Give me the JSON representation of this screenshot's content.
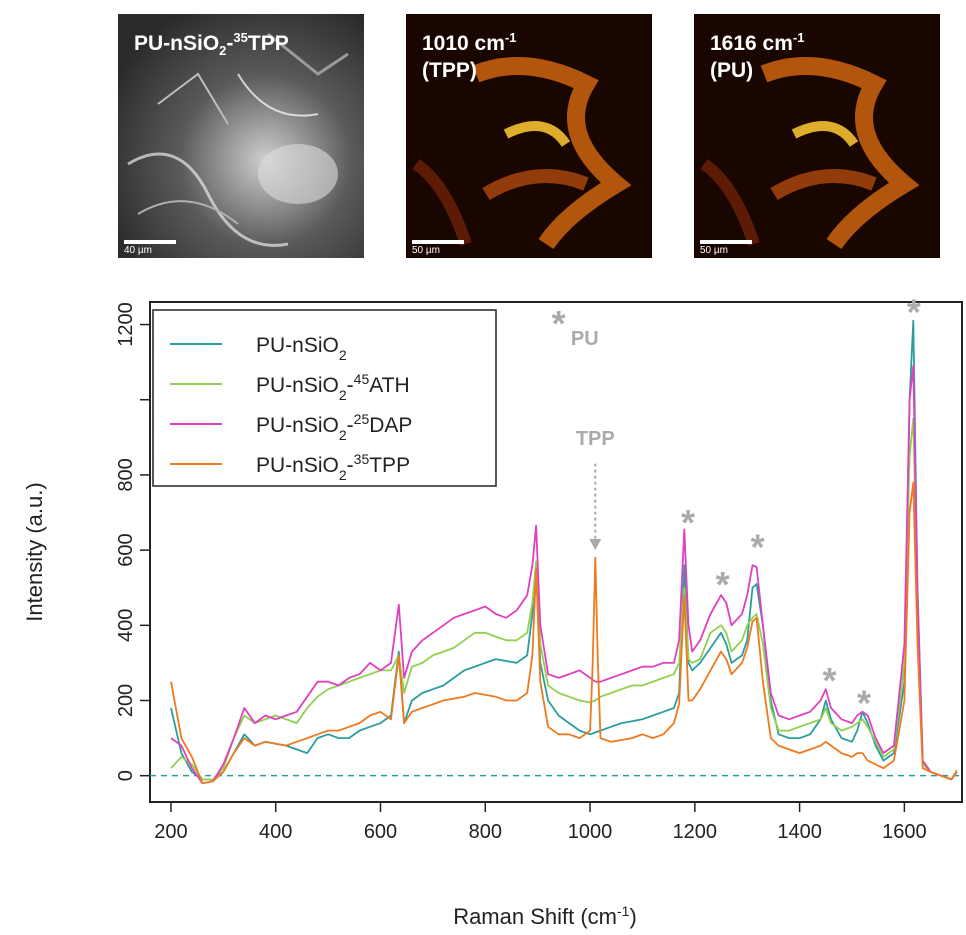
{
  "panels": [
    {
      "label_main": "PU-nSiO",
      "label_sub": "2",
      "label_dash": "-",
      "label_sup": "35",
      "label_end": "TPP",
      "scale": "40 µm"
    },
    {
      "line1_main": "1010 cm",
      "line1_sup": "-1",
      "line2": "(TPP)",
      "scale": "50 µm"
    },
    {
      "line1_main": "1616 cm",
      "line1_sup": "-1",
      "line2": "(PU)",
      "scale": "50 µm"
    }
  ],
  "annotations": {
    "pu_star": "*",
    "pu_text": "PU",
    "tpp_text": "TPP",
    "star": "*"
  },
  "colors": {
    "PU-nSiO2": "#2a9d9f",
    "PU-nSiO2-45ATH": "#8fd14f",
    "PU-nSiO2-25DAP": "#e040c0",
    "PU-nSiO2-35TPP": "#ee7a1f",
    "annotation": "#aaaaaa",
    "baseline": "#2a9d9f"
  },
  "chart_data": {
    "type": "line",
    "xlabel": "Raman Shift  (cm",
    "xlabel_sup": "-1",
    "xlabel_end": ")",
    "ylabel": "Intensity (a.u.)",
    "xlim": [
      160,
      1710
    ],
    "ylim": [
      -70,
      1260
    ],
    "xticks": [
      200,
      400,
      600,
      800,
      1000,
      1200,
      1400,
      1600
    ],
    "xtick_labels": [
      "200",
      "400",
      "600",
      "800",
      "1000",
      "1200",
      "1400",
      "1600"
    ],
    "yticks": [
      0,
      200,
      400,
      600,
      800,
      1000,
      1200
    ],
    "ytick_labels": [
      "0",
      "200",
      "400",
      "600",
      "800",
      "",
      "1200"
    ],
    "legend_position": "top-left",
    "grid": false,
    "series": [
      {
        "name": "PU-nSiO2",
        "legend_main": "PU-nSiO",
        "legend_sub": "2",
        "legend_sup": "",
        "legend_end": "",
        "x": [
          200,
          220,
          240,
          260,
          280,
          300,
          320,
          340,
          360,
          380,
          400,
          420,
          440,
          460,
          480,
          500,
          520,
          540,
          560,
          580,
          600,
          620,
          635,
          645,
          660,
          680,
          700,
          720,
          740,
          760,
          780,
          800,
          820,
          840,
          860,
          880,
          890,
          897,
          905,
          920,
          940,
          960,
          980,
          1000,
          1010,
          1020,
          1040,
          1060,
          1080,
          1100,
          1120,
          1140,
          1160,
          1170,
          1180,
          1188,
          1195,
          1210,
          1230,
          1250,
          1260,
          1270,
          1290,
          1300,
          1310,
          1318,
          1330,
          1345,
          1360,
          1380,
          1400,
          1420,
          1440,
          1450,
          1460,
          1480,
          1500,
          1510,
          1520,
          1530,
          1545,
          1560,
          1580,
          1600,
          1610,
          1617,
          1625,
          1635,
          1650,
          1670,
          1690,
          1700
        ],
        "y": [
          180,
          60,
          10,
          -10,
          -10,
          10,
          60,
          110,
          80,
          90,
          85,
          80,
          70,
          60,
          100,
          110,
          100,
          100,
          120,
          130,
          140,
          160,
          330,
          140,
          200,
          220,
          230,
          240,
          260,
          280,
          290,
          300,
          310,
          305,
          300,
          320,
          430,
          545,
          300,
          200,
          160,
          140,
          120,
          110,
          115,
          120,
          130,
          140,
          145,
          150,
          160,
          170,
          180,
          220,
          560,
          300,
          280,
          300,
          340,
          380,
          350,
          300,
          320,
          360,
          500,
          510,
          400,
          200,
          110,
          100,
          100,
          110,
          150,
          200,
          150,
          100,
          90,
          120,
          170,
          140,
          80,
          40,
          60,
          250,
          1000,
          1210,
          500,
          40,
          10,
          0,
          -10,
          10
        ]
      },
      {
        "name": "PU-nSiO2-45ATH",
        "legend_main": "PU-nSiO",
        "legend_sub": "2",
        "legend_sup": "45",
        "legend_end": "ATH",
        "x": [
          200,
          220,
          240,
          260,
          280,
          300,
          320,
          340,
          360,
          380,
          400,
          420,
          440,
          460,
          480,
          500,
          520,
          540,
          560,
          580,
          600,
          620,
          635,
          645,
          660,
          680,
          700,
          720,
          740,
          760,
          780,
          800,
          820,
          840,
          860,
          880,
          890,
          897,
          905,
          920,
          940,
          960,
          980,
          1000,
          1010,
          1020,
          1040,
          1060,
          1080,
          1100,
          1120,
          1140,
          1160,
          1170,
          1180,
          1188,
          1195,
          1210,
          1230,
          1250,
          1260,
          1270,
          1290,
          1300,
          1310,
          1318,
          1330,
          1345,
          1360,
          1380,
          1400,
          1420,
          1440,
          1450,
          1460,
          1480,
          1500,
          1510,
          1520,
          1530,
          1545,
          1560,
          1580,
          1600,
          1610,
          1617,
          1625,
          1635,
          1650,
          1670,
          1690,
          1700
        ],
        "y": [
          20,
          50,
          30,
          -10,
          -10,
          20,
          100,
          160,
          140,
          150,
          160,
          150,
          140,
          180,
          210,
          230,
          240,
          250,
          260,
          270,
          280,
          280,
          320,
          220,
          290,
          300,
          320,
          330,
          340,
          360,
          380,
          380,
          370,
          360,
          360,
          380,
          460,
          570,
          350,
          240,
          220,
          210,
          200,
          195,
          200,
          210,
          220,
          230,
          240,
          240,
          250,
          260,
          270,
          300,
          500,
          310,
          300,
          310,
          380,
          400,
          380,
          330,
          360,
          400,
          420,
          430,
          350,
          180,
          120,
          120,
          130,
          140,
          150,
          180,
          140,
          120,
          130,
          140,
          150,
          130,
          90,
          50,
          70,
          300,
          850,
          950,
          450,
          30,
          10,
          0,
          -10,
          15
        ]
      },
      {
        "name": "PU-nSiO2-25DAP",
        "legend_main": "PU-nSiO",
        "legend_sub": "2",
        "legend_sup": "25",
        "legend_end": "DAP",
        "x": [
          200,
          220,
          240,
          260,
          280,
          300,
          320,
          340,
          360,
          380,
          400,
          420,
          440,
          460,
          480,
          500,
          520,
          540,
          560,
          580,
          600,
          620,
          635,
          645,
          660,
          680,
          700,
          720,
          740,
          760,
          780,
          800,
          820,
          840,
          860,
          880,
          890,
          897,
          905,
          920,
          940,
          960,
          980,
          1000,
          1010,
          1020,
          1040,
          1060,
          1080,
          1100,
          1120,
          1140,
          1160,
          1170,
          1180,
          1188,
          1195,
          1210,
          1230,
          1250,
          1260,
          1270,
          1290,
          1300,
          1310,
          1318,
          1330,
          1345,
          1360,
          1380,
          1400,
          1420,
          1440,
          1450,
          1460,
          1480,
          1500,
          1510,
          1520,
          1530,
          1545,
          1560,
          1580,
          1600,
          1610,
          1617,
          1625,
          1635,
          1650,
          1670,
          1690,
          1700
        ],
        "y": [
          100,
          80,
          20,
          -20,
          -15,
          30,
          100,
          180,
          140,
          160,
          150,
          160,
          170,
          210,
          250,
          250,
          240,
          260,
          270,
          300,
          280,
          300,
          455,
          260,
          330,
          360,
          380,
          400,
          420,
          430,
          440,
          450,
          430,
          420,
          440,
          480,
          560,
          665,
          400,
          270,
          260,
          270,
          280,
          260,
          250,
          250,
          260,
          270,
          280,
          290,
          290,
          300,
          300,
          360,
          655,
          400,
          330,
          360,
          430,
          480,
          460,
          400,
          430,
          480,
          560,
          555,
          400,
          220,
          160,
          150,
          160,
          170,
          200,
          230,
          180,
          150,
          140,
          160,
          170,
          160,
          100,
          60,
          80,
          350,
          1000,
          1090,
          480,
          40,
          10,
          0,
          -10,
          10
        ]
      },
      {
        "name": "PU-nSiO2-35TPP",
        "legend_main": "PU-nSiO",
        "legend_sub": "2",
        "legend_sup": "35",
        "legend_end": "TPP",
        "x": [
          200,
          220,
          240,
          260,
          280,
          300,
          320,
          340,
          360,
          380,
          400,
          420,
          440,
          460,
          480,
          500,
          520,
          540,
          560,
          580,
          600,
          620,
          635,
          645,
          660,
          680,
          700,
          720,
          740,
          760,
          780,
          800,
          820,
          840,
          860,
          880,
          890,
          897,
          905,
          920,
          940,
          960,
          980,
          1000,
          1005,
          1010,
          1015,
          1020,
          1040,
          1060,
          1080,
          1100,
          1120,
          1140,
          1160,
          1170,
          1180,
          1188,
          1195,
          1210,
          1230,
          1250,
          1260,
          1270,
          1290,
          1300,
          1310,
          1318,
          1330,
          1345,
          1360,
          1380,
          1400,
          1420,
          1440,
          1450,
          1460,
          1480,
          1500,
          1510,
          1520,
          1530,
          1545,
          1560,
          1580,
          1600,
          1610,
          1617,
          1625,
          1635,
          1650,
          1670,
          1690,
          1700
        ],
        "y": [
          250,
          100,
          50,
          -20,
          -15,
          10,
          60,
          100,
          80,
          90,
          85,
          80,
          90,
          100,
          110,
          120,
          120,
          130,
          140,
          160,
          170,
          150,
          320,
          140,
          170,
          180,
          190,
          200,
          205,
          210,
          220,
          215,
          210,
          200,
          200,
          220,
          320,
          550,
          250,
          130,
          110,
          110,
          100,
          120,
          300,
          580,
          300,
          100,
          90,
          95,
          100,
          110,
          100,
          110,
          140,
          190,
          480,
          200,
          200,
          230,
          280,
          330,
          310,
          270,
          300,
          340,
          410,
          420,
          250,
          100,
          80,
          70,
          60,
          70,
          80,
          90,
          80,
          60,
          50,
          60,
          60,
          40,
          30,
          20,
          40,
          200,
          700,
          780,
          350,
          20,
          10,
          0,
          -10,
          10
        ]
      }
    ]
  }
}
